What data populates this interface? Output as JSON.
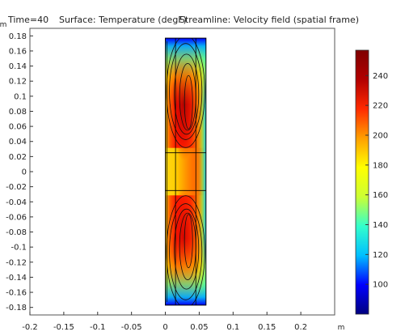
{
  "header": {
    "time_label": "Time=40",
    "surface_label": "Surface: Temperature (degF)",
    "streamline_label": "Streamline: Velocity field (spatial frame)"
  },
  "chart_data": {
    "type": "heatmap",
    "title": "Surface: Temperature (degF) Streamline: Velocity field (spatial frame)",
    "time": 40,
    "xunit": "m",
    "yunit": "m",
    "xlim": [
      -0.2,
      0.25
    ],
    "ylim": [
      -0.19,
      0.19
    ],
    "xticks": [
      -0.2,
      -0.15,
      -0.1,
      -0.05,
      0,
      0.05,
      0.1,
      0.15,
      0.2
    ],
    "xtick_labels": [
      "-0.2",
      "-0.15",
      "-0.1",
      "-0.05",
      "0",
      "0.05",
      "0.1",
      "0.15",
      "0.2"
    ],
    "yticks": [
      0.18,
      0.16,
      0.14,
      0.12,
      0.1,
      0.08,
      0.06,
      0.04,
      0.02,
      0,
      -0.02,
      -0.04,
      -0.06,
      -0.08,
      -0.1,
      -0.12,
      -0.14,
      -0.16,
      -0.18
    ],
    "ytick_labels": [
      "0.18",
      "0.16",
      "0.14",
      "0.12",
      "0.1",
      "0.08",
      "0.06",
      "0.04",
      "0.02",
      "0",
      "-0.02",
      "-0.04",
      "-0.06",
      "-0.08",
      "-0.1",
      "-0.12",
      "-0.14",
      "-0.16",
      "-0.18"
    ],
    "domain": {
      "x": [
        0,
        0.06
      ],
      "y": [
        -0.177,
        0.177
      ]
    },
    "inner_boundaries": {
      "x": [
        0.015,
        0.045
      ],
      "y": [
        -0.025,
        0.025
      ]
    },
    "colorbar": {
      "min": 80,
      "max": 257,
      "ticks": [
        100,
        120,
        140,
        160,
        180,
        200,
        220,
        240
      ],
      "tick_labels": [
        "100",
        "120",
        "140",
        "160",
        "180",
        "200",
        "220",
        "240"
      ],
      "colormap": [
        "#00007f",
        "#0000ff",
        "#00bfff",
        "#33ffcc",
        "#ccff33",
        "#ffff00",
        "#ff9f00",
        "#ff2a00",
        "#b20000",
        "#7f0000"
      ]
    }
  }
}
